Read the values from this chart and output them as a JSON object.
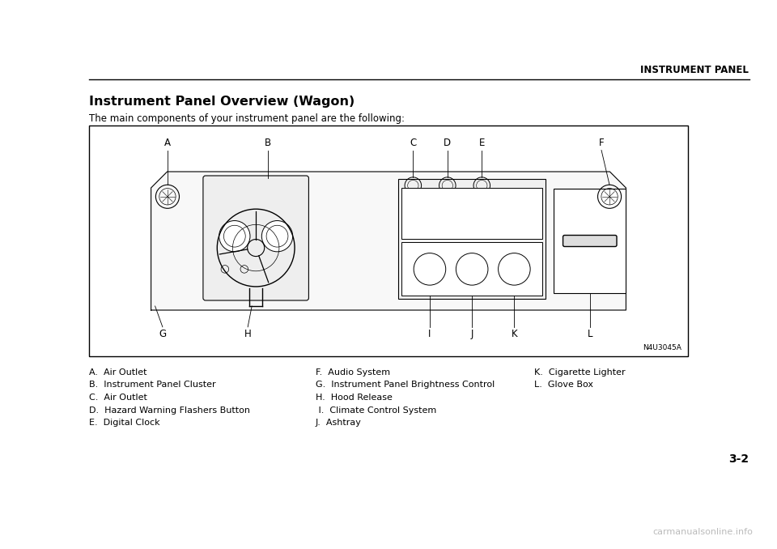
{
  "bg_color": "#ffffff",
  "page_header_text": "INSTRUMENT PANEL",
  "page_number": "3-2",
  "section_title": "Instrument Panel Overview (Wagon)",
  "section_subtitle": "The main components of your instrument panel are the following:",
  "diagram_note": "N4U3045A",
  "legend_col1": [
    "A.  Air Outlet",
    "B.  Instrument Panel Cluster",
    "C.  Air Outlet",
    "D.  Hazard Warning Flashers Button",
    "E.  Digital Clock"
  ],
  "legend_col2": [
    "F.  Audio System",
    "G.  Instrument Panel Brightness Control",
    "H.  Hood Release",
    " I.  Climate Control System",
    "J.  Ashtray"
  ],
  "legend_col3": [
    "K.  Cigarette Lighter",
    "L.  Glove Box"
  ],
  "watermark_text": "carmanualsonline.info"
}
